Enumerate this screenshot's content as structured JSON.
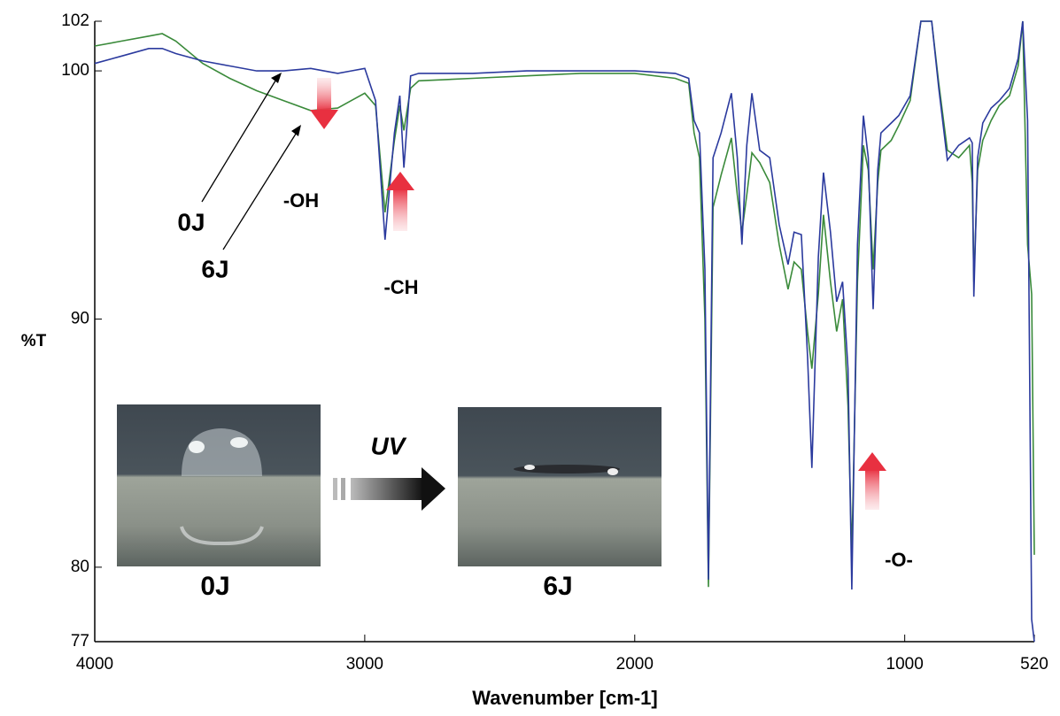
{
  "chart_data": {
    "type": "line",
    "xlabel": "Wavenumber [cm-1]",
    "ylabel": "%T",
    "x": [
      4000,
      3900,
      3800,
      3750,
      3700,
      3600,
      3500,
      3400,
      3300,
      3200,
      3100,
      3050,
      3000,
      2960,
      2925,
      2890,
      2870,
      2855,
      2830,
      2800,
      2600,
      2400,
      2200,
      2000,
      1850,
      1800,
      1780,
      1760,
      1740,
      1727,
      1710,
      1680,
      1642,
      1620,
      1603,
      1585,
      1566,
      1537,
      1500,
      1465,
      1432,
      1410,
      1383,
      1360,
      1344,
      1320,
      1301,
      1275,
      1252,
      1230,
      1210,
      1196,
      1175,
      1153,
      1135,
      1117,
      1100,
      1088,
      1050,
      1022,
      980,
      940,
      900,
      874,
      842,
      800,
      760,
      750,
      744,
      730,
      711,
      680,
      650,
      612,
      580,
      563,
      545,
      530,
      520
    ],
    "series": [
      {
        "name": "0J",
        "color": "#2b3a9e",
        "values": [
          100.3,
          100.6,
          100.9,
          100.9,
          100.7,
          100.4,
          100.2,
          100.0,
          100.0,
          100.1,
          99.9,
          100.0,
          100.1,
          98.8,
          93.2,
          97.5,
          99.0,
          96.1,
          99.8,
          99.9,
          99.9,
          100.0,
          100.0,
          100.0,
          99.9,
          99.7,
          98.0,
          97.5,
          92.0,
          79.5,
          96.5,
          97.5,
          99.1,
          96.5,
          93.0,
          97.0,
          99.1,
          96.8,
          96.5,
          93.8,
          92.2,
          93.5,
          93.4,
          88.5,
          84.0,
          92.5,
          95.9,
          93.5,
          90.7,
          91.5,
          88.0,
          79.1,
          93.0,
          98.2,
          96.5,
          90.4,
          96.0,
          97.5,
          97.9,
          98.2,
          99.0,
          102.0,
          102.0,
          99.3,
          96.4,
          97.0,
          97.3,
          97.1,
          90.9,
          96.5,
          97.9,
          98.5,
          98.8,
          99.3,
          100.5,
          102.0,
          98.0,
          77.9,
          77.0
        ]
      },
      {
        "name": "6J",
        "color": "#3a8a3a",
        "values": [
          101.0,
          101.2,
          101.4,
          101.5,
          101.2,
          100.3,
          99.7,
          99.2,
          98.8,
          98.4,
          98.5,
          98.8,
          99.1,
          98.6,
          94.3,
          97.2,
          98.6,
          97.6,
          99.3,
          99.6,
          99.7,
          99.8,
          99.9,
          99.9,
          99.7,
          99.5,
          97.5,
          96.5,
          90.0,
          79.2,
          94.5,
          95.8,
          97.3,
          95.0,
          93.5,
          95.0,
          96.7,
          96.3,
          95.5,
          93.0,
          91.2,
          92.3,
          92.0,
          89.5,
          88.0,
          91.0,
          94.2,
          91.5,
          89.5,
          90.8,
          86.5,
          80.5,
          91.5,
          97.0,
          96.0,
          92.0,
          95.5,
          96.8,
          97.2,
          97.8,
          98.8,
          102.0,
          102.0,
          99.5,
          96.8,
          96.5,
          97.0,
          95.5,
          91.5,
          96.0,
          97.2,
          98.0,
          98.6,
          99.0,
          100.2,
          102.0,
          93.0,
          91.0,
          80.5
        ]
      }
    ],
    "xlim": [
      4000,
      520
    ],
    "xticks": [
      4000,
      3000,
      2000,
      1000,
      520
    ],
    "ylim": [
      77,
      102
    ],
    "yticks": [
      77,
      80,
      90,
      100,
      102
    ],
    "annotations": [
      "-OH",
      "-CH",
      "-O-",
      "UV",
      "0J",
      "6J"
    ]
  }
}
